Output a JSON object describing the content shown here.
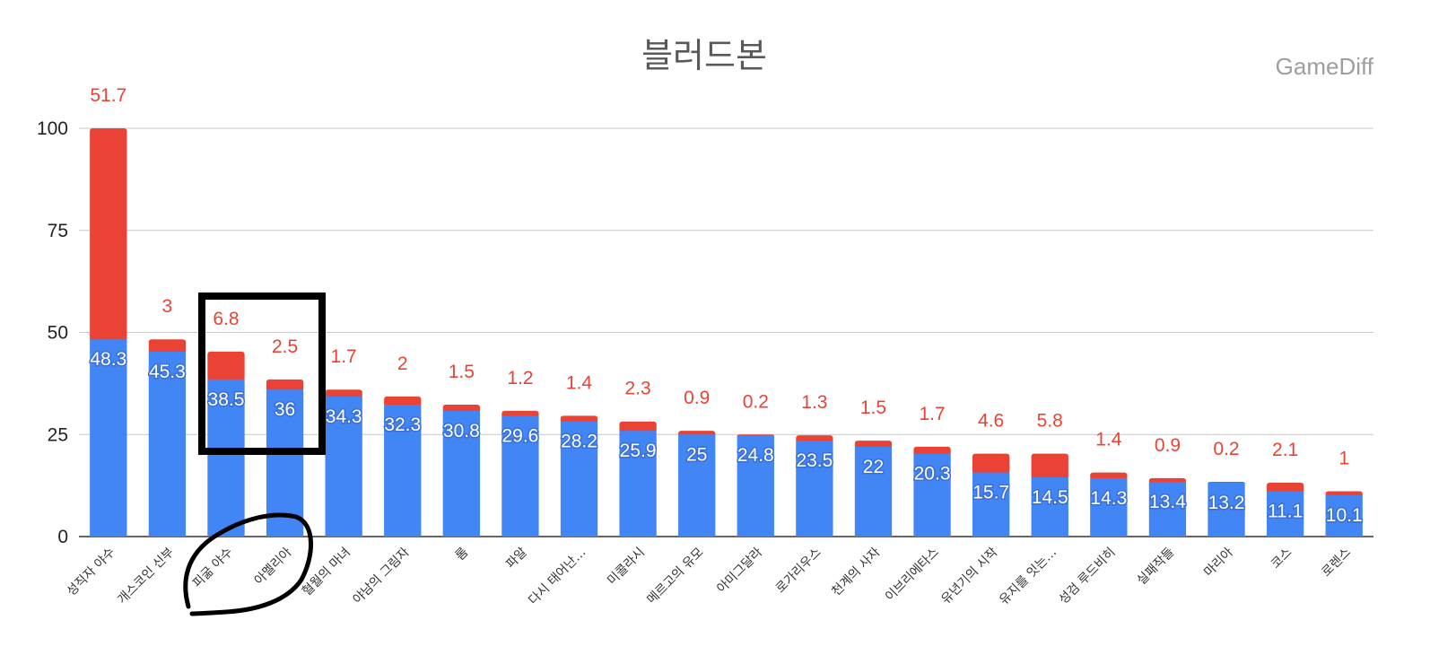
{
  "chart_data": {
    "type": "bar",
    "stacked": true,
    "title": "블러드본",
    "watermark": "GameDiff",
    "categories": [
      "성직자 야수",
      "개스코인 신부",
      "피굶 야수",
      "아멜리아",
      "혈월의 마녀",
      "야남의 그림자",
      "롬",
      "파알",
      "다시 태어난…",
      "미콜라시",
      "메르고의 유모",
      "아미그달라",
      "로가리우스",
      "천계의 사자",
      "이브리에타스",
      "유년기의 시작",
      "유지를 잇는…",
      "성검 루드비히",
      "실패작들",
      "마리아",
      "코스",
      "로렌스"
    ],
    "series": [
      {
        "values": [
          48.3,
          45.3,
          38.5,
          36,
          34.3,
          32.3,
          30.8,
          29.6,
          28.2,
          25.9,
          25,
          24.8,
          23.5,
          22,
          20.3,
          15.7,
          14.5,
          14.3,
          13.4,
          13.2,
          11.1,
          10.1
        ],
        "color": "#4285f4"
      },
      {
        "values": [
          51.7,
          3,
          6.8,
          2.5,
          1.7,
          2,
          1.5,
          1.2,
          1.4,
          2.3,
          0.9,
          0.2,
          1.3,
          1.5,
          1.7,
          4.6,
          5.8,
          1.4,
          0.9,
          0.2,
          2.1,
          1
        ],
        "color": "#ea4335"
      }
    ],
    "ylim": [
      0,
      100
    ],
    "yticks": [
      0,
      25,
      50,
      75,
      100
    ],
    "grid": true,
    "annotations": [
      "rectangle around 피굶 야수 and 아멜리아 bars",
      "hand-drawn circle around 피굶 야수 and 아멜리아 labels"
    ]
  }
}
